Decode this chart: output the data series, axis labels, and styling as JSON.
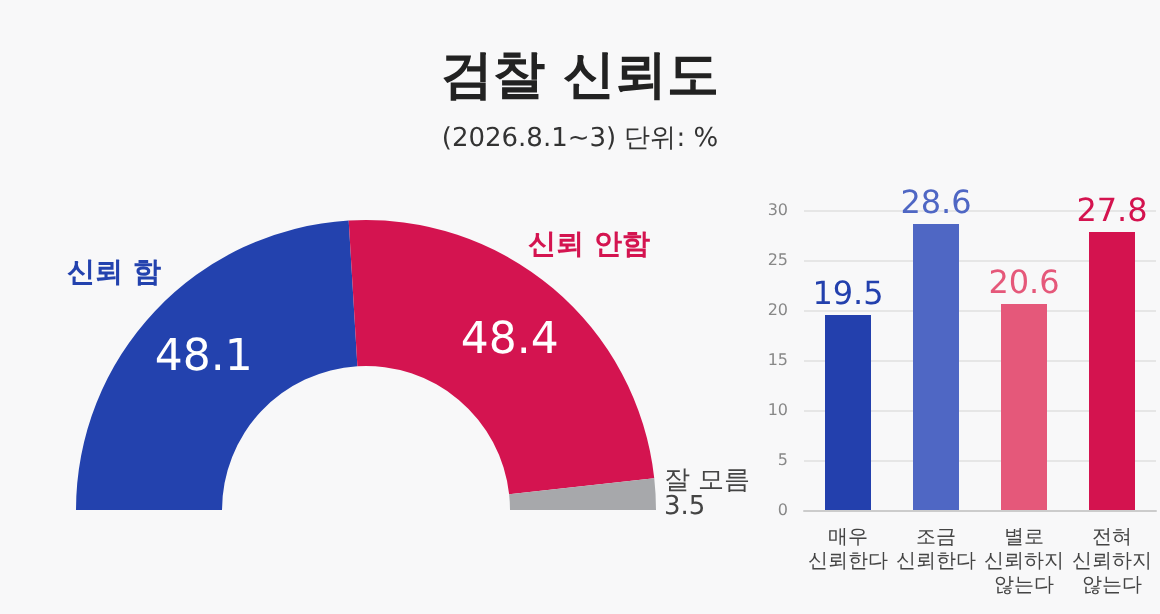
{
  "chart_data": [
    {
      "type": "donut",
      "title": "검찰 신뢰도",
      "subtitle": "(2026.8.1~3) 단위: %",
      "categories": [
        "신뢰 함",
        "신뢰 안함",
        "잘 모름"
      ],
      "values": [
        48.1,
        48.4,
        3.5
      ],
      "colors": [
        "#2342ae",
        "#d41450",
        "#a7a8ab"
      ],
      "data_labels": true,
      "legend": false
    },
    {
      "type": "bar",
      "categories": [
        "매우\n신뢰한다",
        "조금\n신뢰한다",
        "별로\n신뢰하지\n않는다",
        "전혀\n신뢰하지\n않는다"
      ],
      "values": [
        19.5,
        28.6,
        20.6,
        27.8
      ],
      "colors": [
        "#2340ad",
        "#4f67c4",
        "#e5587a",
        "#d4134f"
      ],
      "ylim": [
        0,
        30
      ],
      "yticks": [
        0,
        5,
        10,
        15,
        20,
        25,
        30
      ],
      "grid": "y",
      "data_labels": true
    }
  ]
}
